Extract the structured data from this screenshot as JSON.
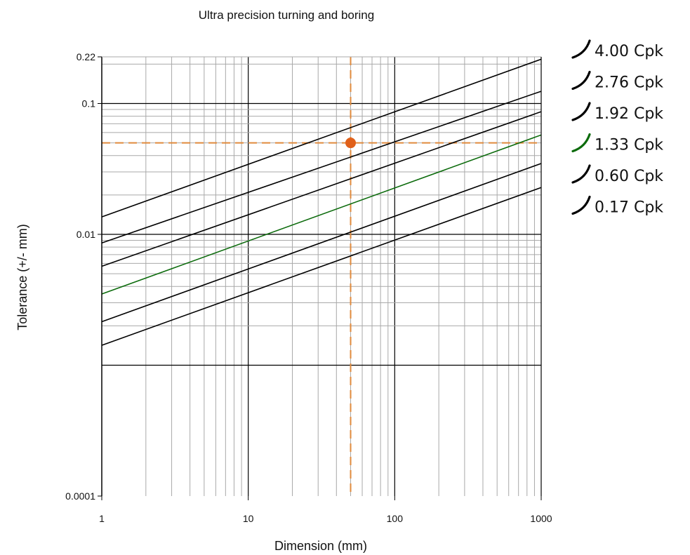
{
  "chart_data": {
    "type": "line",
    "title": "Ultra precision turning and boring",
    "xlabel": "Dimension (mm)",
    "ylabel": "Tolerance (+/- mm)",
    "x_scale": "log",
    "y_scale": "log",
    "xlim": [
      1,
      1000
    ],
    "ylim": [
      0.0001,
      0.22
    ],
    "x_ticks": [
      1,
      10,
      100,
      1000
    ],
    "x_tick_labels": [
      "1",
      "10",
      "100",
      "1000"
    ],
    "y_ticks": [
      0.0001,
      0.01,
      0.1,
      0.22
    ],
    "y_tick_labels": [
      "0.0001",
      "0.01",
      "0.1",
      "0.22"
    ],
    "y_major_lines": [
      0.001,
      0.01,
      0.1
    ],
    "grid": true,
    "legend_position": "right",
    "series": [
      {
        "name": "4.00 Cpk",
        "color": "#000000",
        "x": [
          1,
          1000
        ],
        "y": [
          0.0136,
          0.218
        ]
      },
      {
        "name": "2.76 Cpk",
        "color": "#000000",
        "x": [
          1,
          1000
        ],
        "y": [
          0.0086,
          0.124
        ]
      },
      {
        "name": "1.92 Cpk",
        "color": "#000000",
        "x": [
          1,
          1000
        ],
        "y": [
          0.0057,
          0.0866
        ]
      },
      {
        "name": "1.33 Cpk",
        "color": "#0c6b0c",
        "x": [
          1,
          1000
        ],
        "y": [
          0.0035,
          0.0575
        ]
      },
      {
        "name": "0.60 Cpk",
        "color": "#000000",
        "x": [
          1,
          1000
        ],
        "y": [
          0.00215,
          0.0348
        ]
      },
      {
        "name": "0.17 Cpk",
        "color": "#000000",
        "x": [
          1,
          1000
        ],
        "y": [
          0.00142,
          0.0228
        ]
      }
    ],
    "marker": {
      "x": 50,
      "y": 0.05,
      "color": "#e0601a",
      "guide_color": "#e08a3c"
    }
  }
}
